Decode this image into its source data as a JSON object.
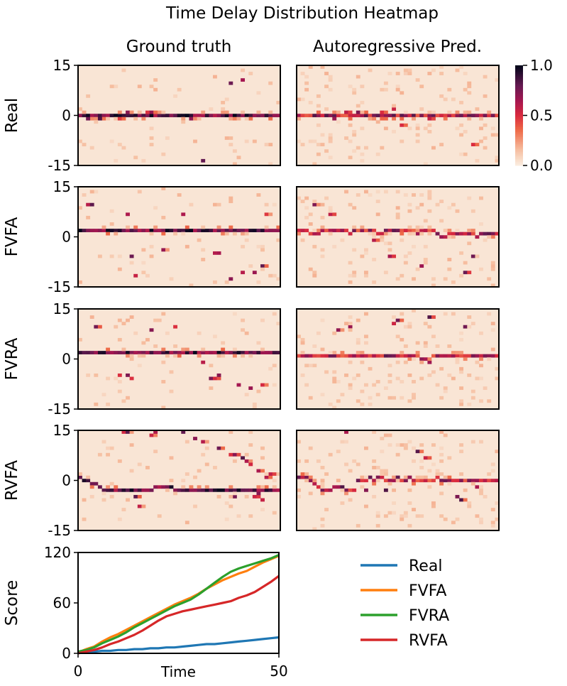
{
  "chart_data": [
    {
      "type": "heatmap",
      "title": "Time Delay Distribution Heatmap",
      "column_titles": [
        "Ground truth",
        "Autoregressive Pred."
      ],
      "row_labels": [
        "Real",
        "FVFA",
        "FVRA",
        "RVFA"
      ],
      "y_ticks": [
        "15",
        "0",
        "-15"
      ],
      "y_range": [
        -15,
        15
      ],
      "x_range": [
        0,
        50
      ],
      "colorbar": {
        "ticks": [
          "1.0",
          "0.5",
          "0.0"
        ],
        "range": [
          0,
          1
        ],
        "colormap": "rocket_r"
      },
      "panels": [
        {
          "row": "Real",
          "column": "Ground truth",
          "peak_delay_by_time": [
            0,
            0,
            0,
            0,
            0,
            0,
            0,
            0,
            0,
            0,
            0,
            0,
            0,
            0,
            0,
            0,
            0,
            0,
            0,
            0,
            0,
            0,
            0,
            0,
            0,
            0,
            0,
            0,
            0,
            0,
            0,
            0,
            0,
            0,
            0,
            0,
            0,
            0,
            0,
            0,
            0,
            0,
            0,
            0,
            0,
            0,
            0,
            0,
            0,
            0,
            0
          ],
          "accents": [
            [
              2,
              -1
            ],
            [
              5,
              -1
            ],
            [
              10,
              -1
            ],
            [
              12,
              1
            ],
            [
              17,
              1
            ],
            [
              18,
              1
            ],
            [
              28,
              -1
            ],
            [
              31,
              -14
            ],
            [
              38,
              10
            ],
            [
              41,
              11
            ]
          ]
        },
        {
          "row": "Real",
          "column": "Autoregressive Pred.",
          "peak_delay_by_time": [
            0,
            0,
            0,
            0,
            0,
            0,
            0,
            0,
            0,
            0,
            0,
            0,
            0,
            0,
            0,
            0,
            0,
            0,
            0,
            0,
            0,
            0,
            0,
            0,
            0,
            0,
            0,
            0,
            0,
            0,
            0,
            0,
            0,
            0,
            0,
            0,
            0,
            0,
            0,
            0,
            0,
            0,
            0,
            0,
            0,
            0,
            0,
            0,
            0,
            0,
            0
          ],
          "accents": [
            [
              9,
              -1
            ],
            [
              12,
              1
            ],
            [
              15,
              1
            ],
            [
              21,
              1
            ],
            [
              24,
              2
            ],
            [
              26,
              -3
            ],
            [
              33,
              -1
            ],
            [
              44,
              -9
            ]
          ]
        },
        {
          "row": "FVFA",
          "column": "Ground truth",
          "peak_delay_by_time": [
            2,
            2,
            2,
            2,
            2,
            2,
            2,
            2,
            2,
            2,
            2,
            2,
            2,
            2,
            2,
            2,
            2,
            2,
            2,
            2,
            2,
            2,
            2,
            2,
            2,
            2,
            2,
            2,
            2,
            2,
            2,
            2,
            2,
            2,
            2,
            2,
            2,
            2,
            2,
            2,
            2,
            2,
            2,
            2,
            2,
            2,
            2,
            2,
            2,
            2,
            2
          ],
          "accents": [
            [
              2,
              10
            ],
            [
              3,
              10
            ],
            [
              12,
              7
            ],
            [
              13,
              -6
            ],
            [
              14,
              -12
            ],
            [
              21,
              -4
            ],
            [
              26,
              7
            ],
            [
              34,
              -5
            ],
            [
              35,
              -5
            ],
            [
              38,
              -13
            ],
            [
              41,
              -11
            ],
            [
              44,
              -11
            ],
            [
              46,
              -9
            ],
            [
              47,
              7
            ]
          ]
        },
        {
          "row": "FVFA",
          "column": "Autoregressive Pred.",
          "peak_delay_by_time": [
            2,
            2,
            2,
            1,
            1,
            1,
            2,
            2,
            2,
            2,
            2,
            2,
            2,
            1,
            2,
            2,
            2,
            2,
            2,
            2,
            1,
            1,
            2,
            2,
            2,
            2,
            2,
            2,
            2,
            2,
            1,
            2,
            2,
            2,
            2,
            1,
            0,
            0,
            1,
            1,
            1,
            1,
            1,
            1,
            1,
            0,
            1,
            1,
            1,
            1,
            1
          ],
          "accents": [
            [
              4,
              10
            ],
            [
              8,
              7
            ],
            [
              19,
              -1
            ],
            [
              23,
              -6
            ],
            [
              31,
              -9
            ],
            [
              42,
              -11
            ],
            [
              44,
              -6
            ]
          ]
        },
        {
          "row": "FVRA",
          "column": "Ground truth",
          "peak_delay_by_time": [
            2,
            2,
            2,
            2,
            2,
            2,
            2,
            2,
            2,
            2,
            2,
            2,
            2,
            2,
            2,
            2,
            2,
            2,
            2,
            2,
            2,
            2,
            2,
            2,
            2,
            2,
            2,
            2,
            2,
            2,
            2,
            2,
            2,
            2,
            2,
            2,
            2,
            2,
            2,
            2,
            2,
            2,
            2,
            2,
            2,
            2,
            2,
            2,
            2,
            2,
            2
          ],
          "accents": [
            [
              4,
              10
            ],
            [
              10,
              -5
            ],
            [
              12,
              -5
            ],
            [
              13,
              -6
            ],
            [
              18,
              9
            ],
            [
              24,
              10
            ],
            [
              31,
              -1
            ],
            [
              33,
              -6
            ],
            [
              34,
              -6
            ],
            [
              35,
              -5
            ],
            [
              40,
              -8
            ],
            [
              43,
              -9
            ],
            [
              46,
              -8
            ]
          ]
        },
        {
          "row": "FVRA",
          "column": "Autoregressive Pred.",
          "peak_delay_by_time": [
            1,
            1,
            1,
            1,
            1,
            1,
            1,
            1,
            1,
            1,
            1,
            1,
            1,
            1,
            1,
            1,
            1,
            1,
            1,
            1,
            1,
            1,
            1,
            1,
            1,
            1,
            1,
            1,
            1,
            1,
            1,
            0,
            0,
            -1,
            1,
            1,
            1,
            1,
            1,
            1,
            1,
            1,
            1,
            1,
            1,
            1,
            1,
            1,
            1,
            1,
            1
          ],
          "accents": [
            [
              10,
              9
            ],
            [
              13,
              10
            ],
            [
              24,
              11
            ],
            [
              25,
              12
            ],
            [
              33,
              13
            ],
            [
              42,
              10
            ]
          ]
        },
        {
          "row": "RVFA",
          "column": "Ground truth",
          "peak_delay_by_time": [
            1,
            0,
            0,
            -1,
            -1,
            -2,
            -3,
            -3,
            -3,
            -3,
            -3,
            -3,
            -3,
            -3,
            -3,
            -3,
            -3,
            -3,
            -3,
            -2,
            -2,
            -2,
            -2,
            -2,
            -3,
            -3,
            -3,
            -3,
            -3,
            -3,
            -3,
            -3,
            -3,
            -3,
            -3,
            -3,
            -3,
            -3,
            -3,
            -3,
            -3,
            -3,
            -3,
            -3,
            -3,
            -3,
            -3,
            -3,
            -3,
            -3,
            -3
          ],
          "accents": [
            [
              11,
              15
            ],
            [
              12,
              15
            ],
            [
              18,
              14
            ],
            [
              19,
              15
            ],
            [
              26,
              15
            ],
            [
              29,
              13
            ],
            [
              31,
              12
            ],
            [
              35,
              10
            ],
            [
              38,
              8
            ],
            [
              39,
              8
            ],
            [
              41,
              7
            ],
            [
              42,
              6
            ],
            [
              43,
              5
            ],
            [
              45,
              3
            ],
            [
              47,
              1
            ],
            [
              48,
              2
            ],
            [
              39,
              -5
            ],
            [
              44,
              -5
            ],
            [
              45,
              -4
            ],
            [
              46,
              -6
            ],
            [
              14,
              -5
            ],
            [
              15,
              -8
            ]
          ]
        },
        {
          "row": "RVFA",
          "column": "Autoregressive Pred.",
          "peak_delay_by_time": [
            1,
            1,
            1,
            0,
            -1,
            -2,
            -3,
            -3,
            -3,
            -2,
            -2,
            -2,
            -3,
            -3,
            -3,
            0,
            0,
            0,
            1,
            0,
            1,
            1,
            0,
            0,
            0,
            1,
            0,
            0,
            1,
            0,
            0,
            0,
            0,
            0,
            0,
            1,
            0,
            0,
            0,
            0,
            0,
            0,
            0,
            0,
            0,
            0,
            0,
            0,
            0,
            0,
            0
          ],
          "accents": [
            [
              12,
              15
            ],
            [
              17,
              -3
            ],
            [
              22,
              -3
            ],
            [
              30,
              9
            ],
            [
              32,
              7
            ],
            [
              40,
              -5
            ],
            [
              41,
              -6
            ],
            [
              45,
              -2
            ]
          ]
        }
      ]
    },
    {
      "type": "line",
      "title": "",
      "xlabel": "Time",
      "ylabel": "Score",
      "xlim": [
        0,
        50
      ],
      "ylim": [
        0,
        120
      ],
      "xticks": [
        "0",
        "50"
      ],
      "yticks": [
        "0",
        "60",
        "120"
      ],
      "x": [
        0,
        2,
        4,
        6,
        8,
        10,
        12,
        14,
        16,
        18,
        20,
        22,
        24,
        26,
        28,
        30,
        32,
        34,
        36,
        38,
        40,
        42,
        44,
        46,
        48,
        50
      ],
      "series": [
        {
          "name": "Real",
          "color": "#1f77b4",
          "values": [
            1,
            2,
            2,
            3,
            3,
            4,
            4,
            5,
            5,
            6,
            6,
            7,
            7,
            8,
            9,
            10,
            11,
            11,
            12,
            13,
            14,
            15,
            16,
            17,
            18,
            19
          ]
        },
        {
          "name": "FVFA",
          "color": "#ff7f0e",
          "values": [
            1,
            5,
            8,
            14,
            19,
            23,
            28,
            33,
            38,
            43,
            48,
            53,
            58,
            62,
            66,
            71,
            77,
            82,
            87,
            91,
            95,
            98,
            103,
            108,
            112,
            116
          ]
        },
        {
          "name": "FVRA",
          "color": "#2ca02c",
          "values": [
            2,
            4,
            7,
            12,
            16,
            20,
            25,
            31,
            36,
            41,
            46,
            51,
            56,
            60,
            64,
            70,
            77,
            84,
            91,
            97,
            101,
            104,
            107,
            110,
            113,
            117
          ]
        },
        {
          "name": "RVFA",
          "color": "#d62728",
          "values": [
            0,
            2,
            4,
            7,
            11,
            14,
            18,
            22,
            27,
            33,
            39,
            44,
            47,
            50,
            52,
            54,
            56,
            58,
            60,
            62,
            66,
            69,
            73,
            79,
            85,
            92
          ]
        }
      ],
      "legend_placement": "right"
    }
  ]
}
